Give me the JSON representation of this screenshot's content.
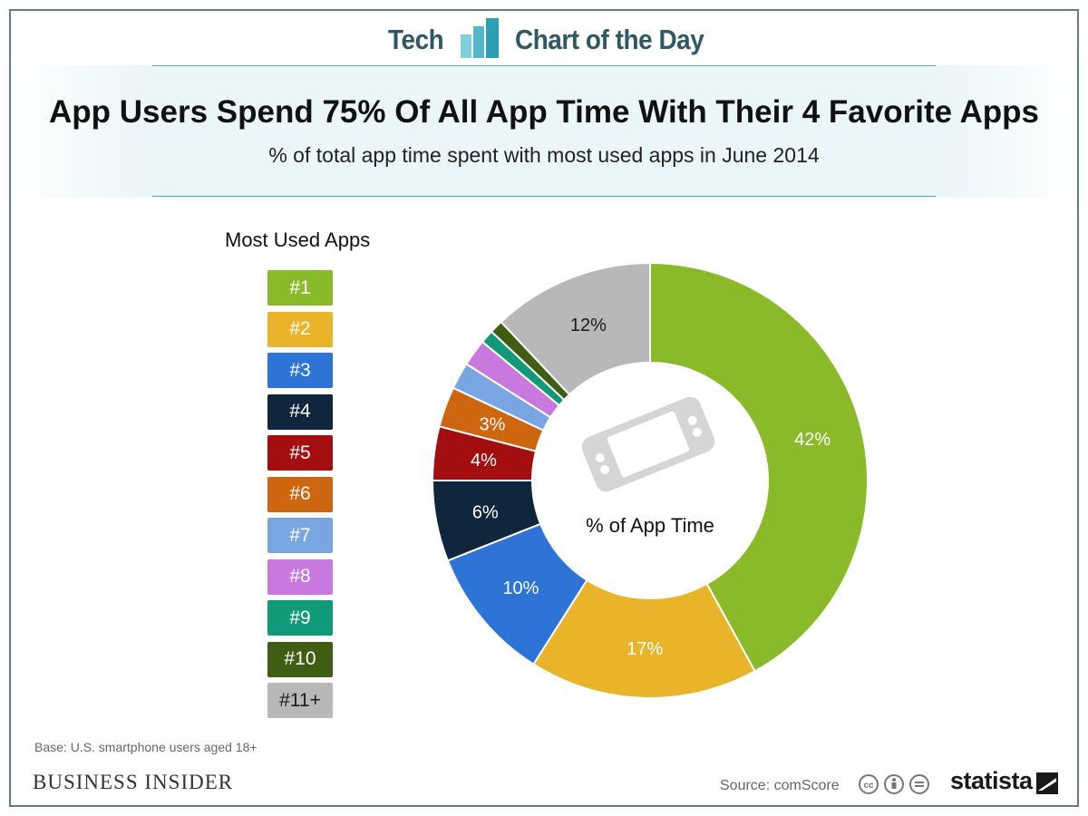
{
  "header": {
    "left_label": "Tech",
    "right_label": "Chart of the Day"
  },
  "title": "App Users Spend 75% Of All App Time With Their 4 Favorite Apps",
  "subtitle": "% of total app time spent with most used apps in June 2014",
  "legend": {
    "title": "Most Used Apps",
    "items": [
      "#1",
      "#2",
      "#3",
      "#4",
      "#5",
      "#6",
      "#7",
      "#8",
      "#9",
      "#10",
      "#11+"
    ]
  },
  "chart_data": {
    "type": "pie",
    "title": "App Users Spend 75% Of All App Time With Their 4 Favorite Apps",
    "subtitle": "% of total app time spent with most used apps in June 2014",
    "center_label": "% of App Time",
    "categories": [
      "#1",
      "#2",
      "#3",
      "#4",
      "#5",
      "#6",
      "#7",
      "#8",
      "#9",
      "#10",
      "#11+"
    ],
    "values": [
      42,
      17,
      10,
      6,
      4,
      3,
      2,
      2,
      1,
      1,
      12
    ],
    "value_labels": [
      "42%",
      "17%",
      "10%",
      "6%",
      "4%",
      "3%",
      "",
      "",
      "",
      "",
      "12%"
    ],
    "colors": [
      "#8aba2a",
      "#e9b42a",
      "#2e73d6",
      "#10263d",
      "#a50e0e",
      "#cd660f",
      "#7aa5e3",
      "#c978df",
      "#119a7a",
      "#3f5d13",
      "#b8b8b8"
    ],
    "label_colors": [
      "#ffffff",
      "#ffffff",
      "#ffffff",
      "#ffffff",
      "#ffffff",
      "#ffffff",
      "#ffffff",
      "#ffffff",
      "#ffffff",
      "#ffffff",
      "#1a1a1a"
    ],
    "donut": true,
    "legend_position": "left"
  },
  "footer": {
    "base_note": "Base: U.S. smartphone users aged 18+",
    "brand": "BUSINESS INSIDER",
    "source": "Source: comScore",
    "statista": "statista"
  }
}
